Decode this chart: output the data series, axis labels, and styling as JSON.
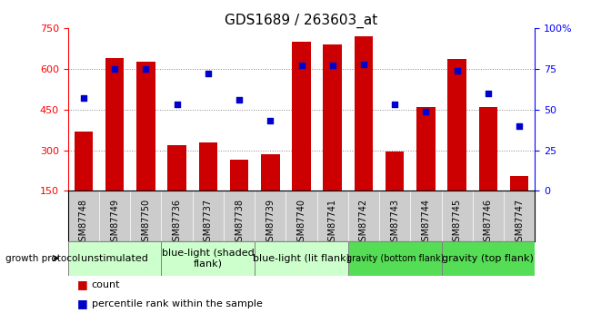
{
  "title": "GDS1689 / 263603_at",
  "samples": [
    "GSM87748",
    "GSM87749",
    "GSM87750",
    "GSM87736",
    "GSM87737",
    "GSM87738",
    "GSM87739",
    "GSM87740",
    "GSM87741",
    "GSM87742",
    "GSM87743",
    "GSM87744",
    "GSM87745",
    "GSM87746",
    "GSM87747"
  ],
  "counts": [
    370,
    640,
    625,
    320,
    330,
    265,
    285,
    700,
    690,
    720,
    295,
    460,
    635,
    460,
    205
  ],
  "percentiles": [
    57,
    75,
    75,
    53,
    72,
    56,
    43,
    77,
    77,
    78,
    53,
    49,
    74,
    60,
    40
  ],
  "groups": [
    {
      "label": "unstimulated",
      "start": 0,
      "end": 3,
      "color": "#ccffcc",
      "fontsize": 8
    },
    {
      "label": "blue-light (shaded\nflank)",
      "start": 3,
      "end": 6,
      "color": "#ccffcc",
      "fontsize": 8
    },
    {
      "label": "blue-light (lit flank)",
      "start": 6,
      "end": 9,
      "color": "#ccffcc",
      "fontsize": 8
    },
    {
      "label": "gravity (bottom flank)",
      "start": 9,
      "end": 12,
      "color": "#55dd55",
      "fontsize": 7
    },
    {
      "label": "gravity (top flank)",
      "start": 12,
      "end": 15,
      "color": "#55dd55",
      "fontsize": 8
    }
  ],
  "ylim_left": [
    150,
    750
  ],
  "ylim_right": [
    0,
    100
  ],
  "yticks_left": [
    150,
    300,
    450,
    600,
    750
  ],
  "yticks_right": [
    0,
    25,
    50,
    75,
    100
  ],
  "bar_color": "#cc0000",
  "dot_color": "#0000cc",
  "grid_color": "#888888",
  "sample_bg_color": "#cccccc",
  "background_color": "#ffffff",
  "legend_count_label": "count",
  "legend_pct_label": "percentile rank within the sample",
  "growth_protocol_label": "growth protocol"
}
